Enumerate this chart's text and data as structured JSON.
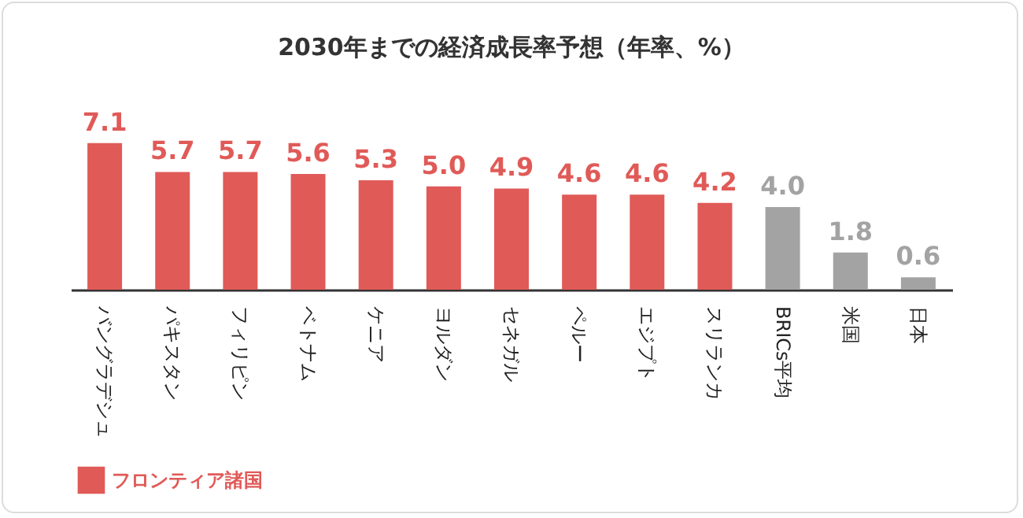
{
  "chart_data": {
    "type": "bar",
    "title": "2030年までの経済成長率予想（年率、%）",
    "categories": [
      "バングラデシュ",
      "パキスタン",
      "フィリピン",
      "ベトナム",
      "ケニア",
      "ヨルダン",
      "セネガル",
      "ペルー",
      "エジプト",
      "スリランカ",
      "BRICs平均",
      "米国",
      "日本"
    ],
    "series": [
      {
        "name": "フロンティア諸国",
        "color": "#e05a57",
        "values": [
          7.1,
          5.7,
          5.7,
          5.6,
          5.3,
          5.0,
          4.9,
          4.6,
          4.6,
          4.2,
          null,
          null,
          null
        ],
        "value_labels": [
          "7.1",
          "5.7",
          "5.7",
          "5.6",
          "5.3",
          "5.0",
          "4.9",
          "4.6",
          "4.6",
          "4.2",
          null,
          null,
          null
        ]
      },
      {
        "color": "#a3a3a3",
        "values": [
          null,
          null,
          null,
          null,
          null,
          null,
          null,
          null,
          null,
          null,
          4.0,
          1.8,
          0.6
        ],
        "value_labels": [
          null,
          null,
          null,
          null,
          null,
          null,
          null,
          null,
          null,
          null,
          "4.0",
          "1.8",
          "0.6"
        ]
      }
    ],
    "tick_labels": "x",
    "legend": "bottom"
  }
}
